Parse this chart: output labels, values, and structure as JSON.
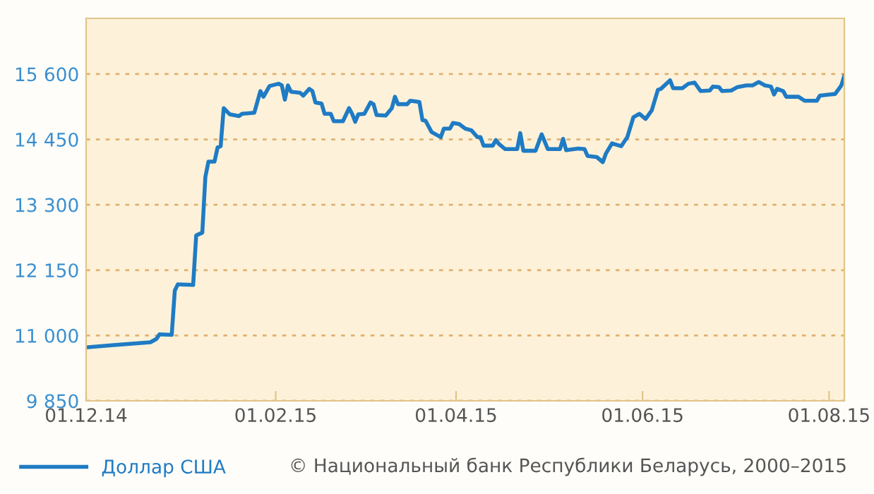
{
  "chart_data": {
    "type": "line",
    "x": [
      "2014-12-01",
      "2014-12-10",
      "2014-12-22",
      "2014-12-24",
      "2014-12-25",
      "2014-12-29",
      "2014-12-30",
      "2014-12-31",
      "2015-01-05",
      "2015-01-06",
      "2015-01-08",
      "2015-01-09",
      "2015-01-10",
      "2015-01-12",
      "2015-01-13",
      "2015-01-14",
      "2015-01-15",
      "2015-01-17",
      "2015-01-20",
      "2015-01-21",
      "2015-01-25",
      "2015-01-27",
      "2015-01-28",
      "2015-01-30",
      "2015-02-02",
      "2015-02-03",
      "2015-02-04",
      "2015-02-05",
      "2015-02-06",
      "2015-02-09",
      "2015-02-10",
      "2015-02-12",
      "2015-02-13",
      "2015-02-14",
      "2015-02-16",
      "2015-02-17",
      "2015-02-19",
      "2015-02-20",
      "2015-02-23",
      "2015-02-25",
      "2015-02-26",
      "2015-02-27",
      "2015-02-28",
      "2015-03-02",
      "2015-03-04",
      "2015-03-05",
      "2015-03-06",
      "2015-03-09",
      "2015-03-11",
      "2015-03-12",
      "2015-03-13",
      "2015-03-16",
      "2015-03-17",
      "2015-03-20",
      "2015-03-21",
      "2015-03-22",
      "2015-03-24",
      "2015-03-27",
      "2015-03-28",
      "2015-03-30",
      "2015-03-31",
      "2015-04-02",
      "2015-04-04",
      "2015-04-06",
      "2015-04-08",
      "2015-04-09",
      "2015-04-10",
      "2015-04-13",
      "2015-04-14",
      "2015-04-15",
      "2015-04-17",
      "2015-04-21",
      "2015-04-22",
      "2015-04-23",
      "2015-04-27",
      "2015-04-29",
      "2015-04-30",
      "2015-05-01",
      "2015-05-05",
      "2015-05-06",
      "2015-05-07",
      "2015-05-11",
      "2015-05-13",
      "2015-05-14",
      "2015-05-17",
      "2015-05-19",
      "2015-05-20",
      "2015-05-22",
      "2015-05-25",
      "2015-05-27",
      "2015-05-29",
      "2015-05-31",
      "2015-06-02",
      "2015-06-04",
      "2015-06-06",
      "2015-06-07",
      "2015-06-10",
      "2015-06-11",
      "2015-06-14",
      "2015-06-16",
      "2015-06-18",
      "2015-06-20",
      "2015-06-23",
      "2015-06-24",
      "2015-06-26",
      "2015-06-27",
      "2015-06-30",
      "2015-07-01",
      "2015-07-02",
      "2015-07-05",
      "2015-07-07",
      "2015-07-09",
      "2015-07-11",
      "2015-07-13",
      "2015-07-14",
      "2015-07-15",
      "2015-07-17",
      "2015-07-18",
      "2015-07-22",
      "2015-07-24",
      "2015-07-28",
      "2015-07-29",
      "2015-08-01",
      "2015-08-03",
      "2015-08-05",
      "2015-08-06"
    ],
    "series": [
      {
        "name": "Доллар США",
        "color": "#1f7bc4",
        "values": [
          10790,
          10830,
          10880,
          10940,
          11020,
          11010,
          11790,
          11900,
          11890,
          12760,
          12810,
          13790,
          14060,
          14060,
          14310,
          14330,
          15000,
          14890,
          14860,
          14900,
          14920,
          15300,
          15200,
          15390,
          15430,
          15400,
          15150,
          15400,
          15290,
          15270,
          15220,
          15340,
          15300,
          15100,
          15080,
          14900,
          14900,
          14770,
          14770,
          15000,
          14900,
          14760,
          14890,
          14900,
          15100,
          15070,
          14880,
          14870,
          15000,
          15200,
          15070,
          15070,
          15130,
          15110,
          14790,
          14780,
          14580,
          14490,
          14640,
          14640,
          14740,
          14720,
          14640,
          14610,
          14490,
          14490,
          14340,
          14340,
          14440,
          14370,
          14280,
          14280,
          14560,
          14250,
          14250,
          14540,
          14410,
          14280,
          14280,
          14460,
          14260,
          14290,
          14280,
          14160,
          14140,
          14050,
          14200,
          14380,
          14330,
          14490,
          14840,
          14900,
          14810,
          14960,
          15320,
          15340,
          15490,
          15350,
          15350,
          15430,
          15450,
          15300,
          15310,
          15380,
          15370,
          15300,
          15310,
          15340,
          15370,
          15400,
          15400,
          15460,
          15400,
          15380,
          15240,
          15340,
          15300,
          15200,
          15200,
          15130,
          15130,
          15220,
          15240,
          15250,
          15400,
          15570
        ]
      }
    ],
    "xlim": [
      "2014-12-01",
      "2015-08-06"
    ],
    "xticks": [
      {
        "value": "2014-12-01",
        "label": "01.12.14"
      },
      {
        "value": "2015-02-01",
        "label": "01.02.15"
      },
      {
        "value": "2015-04-01",
        "label": "01.04.15"
      },
      {
        "value": "2015-06-01",
        "label": "01.06.15"
      },
      {
        "value": "2015-08-01",
        "label": "01.08.15"
      }
    ],
    "ylim": [
      9850,
      16580
    ],
    "yticks": [
      {
        "value": 9850,
        "label": "9 850"
      },
      {
        "value": 11000,
        "label": "11 000"
      },
      {
        "value": 12150,
        "label": "12 150"
      },
      {
        "value": 13300,
        "label": "13 300"
      },
      {
        "value": 14450,
        "label": "14 450"
      },
      {
        "value": 15600,
        "label": "15 600"
      }
    ],
    "grid": "y",
    "legend": "bottom left",
    "marker": "none",
    "line_style": "solid",
    "annotations": [
      "© Национальный банк Республики Беларусь, 2000–2015"
    ]
  }
}
